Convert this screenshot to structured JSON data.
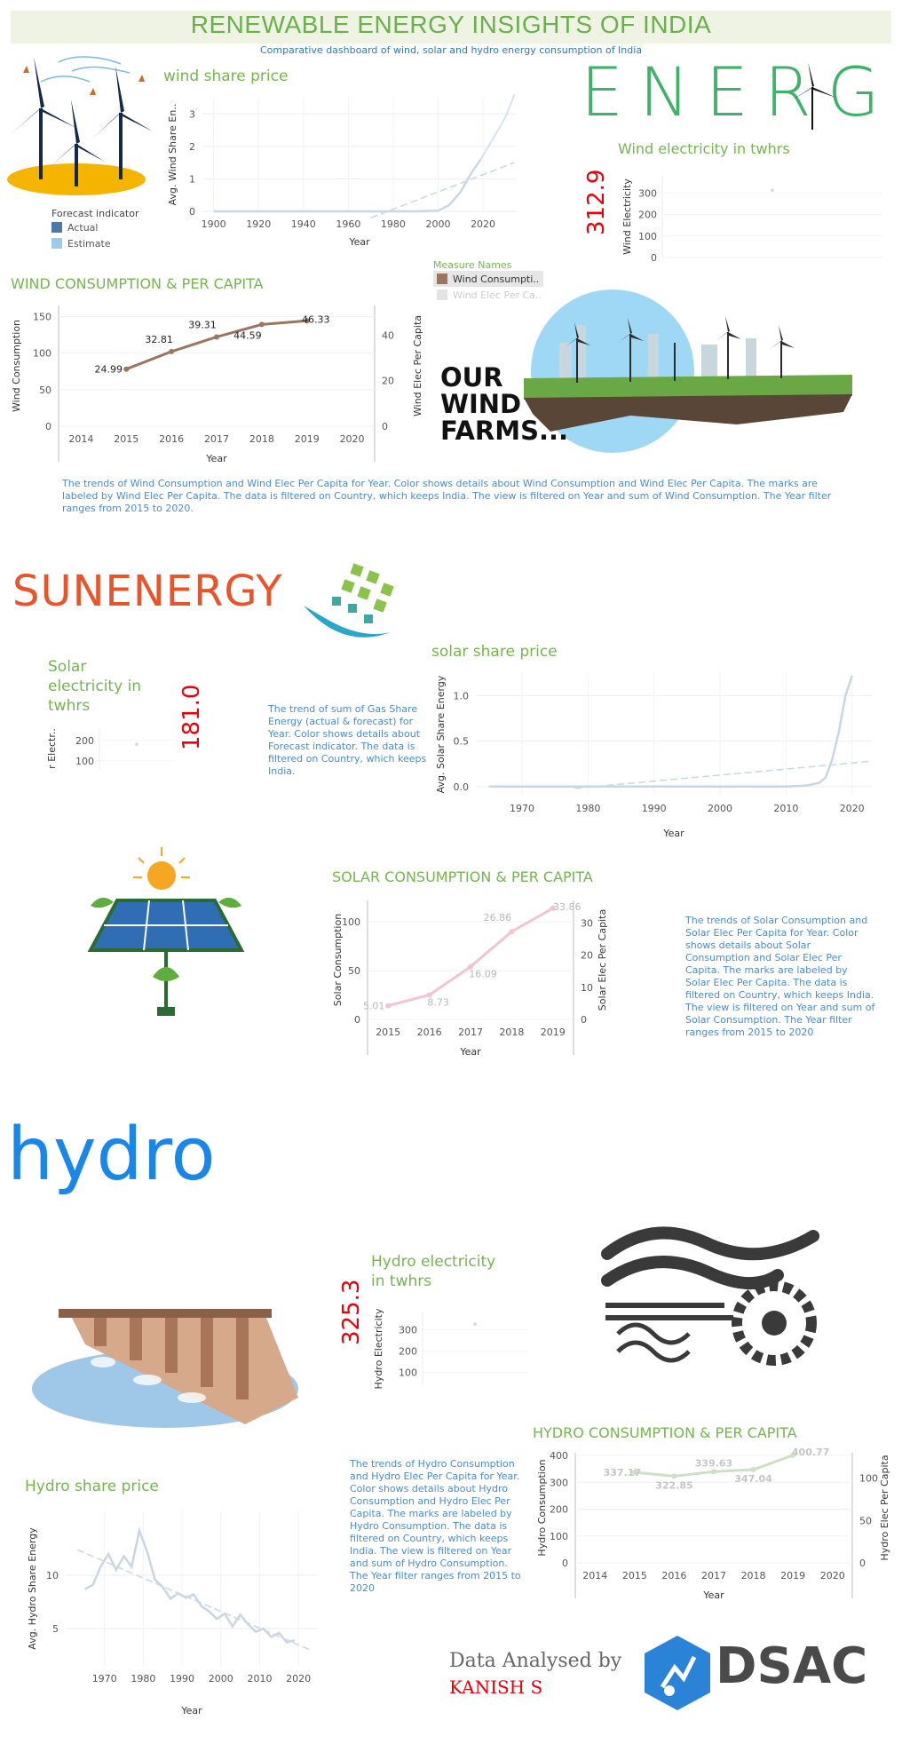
{
  "header": {
    "title": "RENEWABLE ENERGY INSIGHTS OF INDIA",
    "subtitle": "Comparative dashboard of wind, solar and hydro energy consumption of India"
  },
  "wind": {
    "share_title": "wind share price",
    "energy_logo": "ENERG",
    "elec_title": "Wind electricity in twhrs",
    "elec_value": "312.9",
    "elec_ylabel": "Wind Electricity",
    "forecast_legend": {
      "title": "Forecast indicator",
      "items": [
        "Actual",
        "Estimate"
      ]
    },
    "cons_title": "WIND CONSUMPTION & PER CAPITA",
    "measure_legend": {
      "title": "Measure Names",
      "items": [
        "Wind Consumpti..",
        "Wind Elec Per Ca.."
      ]
    },
    "farm_text": [
      "OUR",
      "WIND",
      "FARMS..."
    ],
    "description": "The trends of Wind Consumption and Wind Elec Per Capita for Year.  Color shows details about Wind Consumption and Wind Elec Per Capita.  The marks are labeled by Wind Elec Per Capita. The data is filtered on Country, which keeps India. The view is filtered on Year and sum of Wind Consumption. The Year filter ranges from 2015 to 2020."
  },
  "solar": {
    "logo_text": "SUNENERGY",
    "elec_title": "Solar electricity in twhrs",
    "elec_value": "181.0",
    "elec_ylabel": "r Electr..",
    "share_desc": "The trend of sum of Gas Share Energy (actual & forecast)  for Year.  Color shows details about Forecast indicator. The data is filtered on Country, which keeps India.",
    "share_title": "solar share price",
    "cons_title": "SOLAR CONSUMPTION & PER CAPITA",
    "description": "The trends of Solar Consumption and Solar Elec Per Capita for Year.  Color shows details about Solar Consumption and Solar Elec Per Capita.  The marks are labeled by Solar Elec Per Capita. The data is filtered on Country, which keeps India. The view is filtered on Year and sum of Solar Consumption. The Year filter ranges from 2015 to 2020"
  },
  "hydro": {
    "logo_text": "hydro",
    "elec_title": "Hydro electricity in twhrs",
    "elec_value": "325.3",
    "elec_ylabel": "Hydro Electricity",
    "share_title": "Hydro share price",
    "cons_title": "HYDRO CONSUMPTION & PER CAPITA",
    "description": "The trends of Hydro Consumption and Hydro Elec Per Capita for Year.  Color shows details about Hydro Consumption and Hydro Elec Per Capita.  The marks are labeled by Hydro Consumption. The data is filtered on Country, which keeps India. The view is filtered on Year and sum of Hydro Consumption. The Year filter ranges from 2015 to 2020"
  },
  "footer": {
    "analysed_by": "Data Analysed by",
    "author": "KANISH S",
    "brand": "DSAC"
  },
  "colors": {
    "title_green": "#6ab04c",
    "wind_line": "#9c7560",
    "solar_line": "#f2c4cf",
    "hydro_line": "#cde0c6",
    "share_line": "#c9d6e4",
    "value_red": "#e8000b",
    "desc_blue": "#4a8cc9"
  },
  "chart_data": [
    {
      "id": "wind_share",
      "type": "line",
      "title": "",
      "xlabel": "Year",
      "ylabel": "Avg. Wind Share En..",
      "xlim": [
        1895,
        2035
      ],
      "ylim": [
        0,
        3.5
      ],
      "xticks": [
        1900,
        1920,
        1940,
        1960,
        1980,
        2000,
        2020
      ],
      "yticks": [
        0,
        1,
        2,
        3
      ],
      "series": [
        {
          "name": "Actual",
          "x": [
            1900,
            1990,
            2000,
            2005,
            2010,
            2015,
            2019
          ],
          "y": [
            0,
            0,
            0.02,
            0.2,
            0.6,
            1.2,
            1.6
          ]
        },
        {
          "name": "Estimate",
          "x": [
            2019,
            2025,
            2030,
            2034
          ],
          "y": [
            1.6,
            2.3,
            2.9,
            3.6
          ]
        },
        {
          "name": "Trend",
          "x": [
            1970,
            2034
          ],
          "y": [
            -0.2,
            1.5
          ]
        }
      ]
    },
    {
      "id": "wind_elec",
      "type": "scatter",
      "ylabel": "Wind Electricity",
      "ylim": [
        0,
        380
      ],
      "yticks": [
        0,
        100,
        200,
        300
      ],
      "series": [
        {
          "x": [
            0
          ],
          "y": [
            312.9
          ]
        }
      ]
    },
    {
      "id": "wind_cons",
      "type": "line",
      "xlabel": "Year",
      "ylabel": "Wind Consumption",
      "y2label": "Wind Elec Per Capita",
      "categories": [
        "2014",
        "2015",
        "2016",
        "2017",
        "2018",
        "2019",
        "2020"
      ],
      "ylim": [
        0,
        165
      ],
      "y2lim": [
        0,
        53
      ],
      "yticks": [
        0,
        50,
        100,
        150
      ],
      "y2ticks": [
        0,
        20,
        40
      ],
      "series": [
        {
          "name": "Wind Consumption",
          "x": [
            2015,
            2016,
            2017,
            2018,
            2019
          ],
          "y": [
            78,
            102,
            122,
            139,
            144
          ]
        },
        {
          "name": "Wind Elec Per Capita",
          "x": [
            2015,
            2016,
            2017,
            2018,
            2019
          ],
          "y": [
            24.99,
            32.81,
            39.31,
            44.59,
            46.33
          ]
        }
      ]
    },
    {
      "id": "solar_elec",
      "type": "scatter",
      "ylabel": "r Electr..",
      "ylim": [
        60,
        260
      ],
      "yticks": [
        100,
        200
      ],
      "series": [
        {
          "x": [
            0
          ],
          "y": [
            181.0
          ]
        }
      ]
    },
    {
      "id": "solar_share",
      "type": "line",
      "xlabel": "Year",
      "ylabel": "Avg. Solar Share Energy",
      "xlim": [
        1963,
        2023
      ],
      "ylim": [
        -0.1,
        1.25
      ],
      "xticks": [
        1970,
        1980,
        1990,
        2000,
        2010,
        2020
      ],
      "yticks": [
        0.0,
        0.5,
        1.0
      ],
      "series": [
        {
          "name": "Actual",
          "x": [
            1965,
            2010,
            2013,
            2015,
            2016,
            2017,
            2018,
            2019,
            2020
          ],
          "y": [
            0,
            0,
            0.01,
            0.04,
            0.1,
            0.3,
            0.6,
            1.0,
            1.22
          ]
        },
        {
          "name": "Trend",
          "x": [
            1978,
            2023
          ],
          "y": [
            -0.02,
            0.28
          ]
        }
      ]
    },
    {
      "id": "solar_cons",
      "type": "line",
      "xlabel": "Year",
      "ylabel": "Solar Consumption",
      "y2label": "Solar Elec Per Capita",
      "categories": [
        "2015",
        "2016",
        "2017",
        "2018",
        "2019"
      ],
      "ylim": [
        0,
        122
      ],
      "y2lim": [
        0,
        37
      ],
      "yticks": [
        0,
        50,
        100
      ],
      "y2ticks": [
        0,
        10,
        20,
        30
      ],
      "series": [
        {
          "name": "Solar Consumption",
          "x": [
            2015,
            2016,
            2017,
            2018,
            2019
          ],
          "y": [
            14,
            25,
            54,
            90,
            114
          ]
        },
        {
          "name": "Solar Elec Per Capita",
          "x": [
            2015,
            2016,
            2017,
            2018,
            2019
          ],
          "y": [
            5.01,
            8.73,
            16.09,
            26.86,
            33.86
          ]
        }
      ]
    },
    {
      "id": "hydro_elec",
      "type": "scatter",
      "ylabel": "Hydro Electricity",
      "ylim": [
        40,
        380
      ],
      "yticks": [
        100,
        200,
        300
      ],
      "series": [
        {
          "x": [
            0
          ],
          "y": [
            325.3
          ]
        }
      ]
    },
    {
      "id": "hydro_cons",
      "type": "line",
      "xlabel": "Year",
      "ylabel": "Hydro Consumption",
      "y2label": "Hydro Elec Per Capita",
      "categories": [
        "2014",
        "2015",
        "2016",
        "2017",
        "2018",
        "2019",
        "2020"
      ],
      "ylim": [
        0,
        410
      ],
      "y2lim": [
        0,
        130
      ],
      "yticks": [
        0,
        100,
        200,
        300,
        400
      ],
      "y2ticks": [
        0,
        50,
        100
      ],
      "series": [
        {
          "name": "Hydro Consumption",
          "x": [
            2015,
            2016,
            2017,
            2018,
            2019
          ],
          "y": [
            337.17,
            322.85,
            339.63,
            347.04,
            400.77
          ]
        }
      ]
    },
    {
      "id": "hydro_share",
      "type": "line",
      "xlabel": "Year",
      "ylabel": "Avg. Hydro Share Energy",
      "xlim": [
        1960,
        2025
      ],
      "ylim": [
        1.5,
        16
      ],
      "xticks": [
        1970,
        1980,
        1990,
        2000,
        2010,
        2020
      ],
      "yticks": [
        5,
        10
      ],
      "series": [
        {
          "name": "Actual",
          "x": [
            1965,
            1967,
            1969,
            1971,
            1973,
            1975,
            1977,
            1979,
            1981,
            1983,
            1985,
            1987,
            1989,
            1991,
            1993,
            1995,
            1997,
            1999,
            2001,
            2003,
            2005,
            2007,
            2009,
            2011,
            2013,
            2015,
            2017,
            2019
          ],
          "y": [
            8.7,
            9.1,
            10.8,
            12.0,
            10.5,
            11.8,
            10.8,
            14.2,
            12.2,
            9.6,
            8.9,
            7.8,
            8.3,
            7.9,
            8.2,
            7.1,
            6.6,
            5.9,
            6.4,
            5.2,
            6.3,
            5.4,
            4.7,
            5.0,
            4.2,
            4.6,
            3.7,
            3.9
          ]
        },
        {
          "name": "Trend",
          "x": [
            1963,
            2023
          ],
          "y": [
            12.4,
            3.0
          ]
        }
      ]
    }
  ]
}
